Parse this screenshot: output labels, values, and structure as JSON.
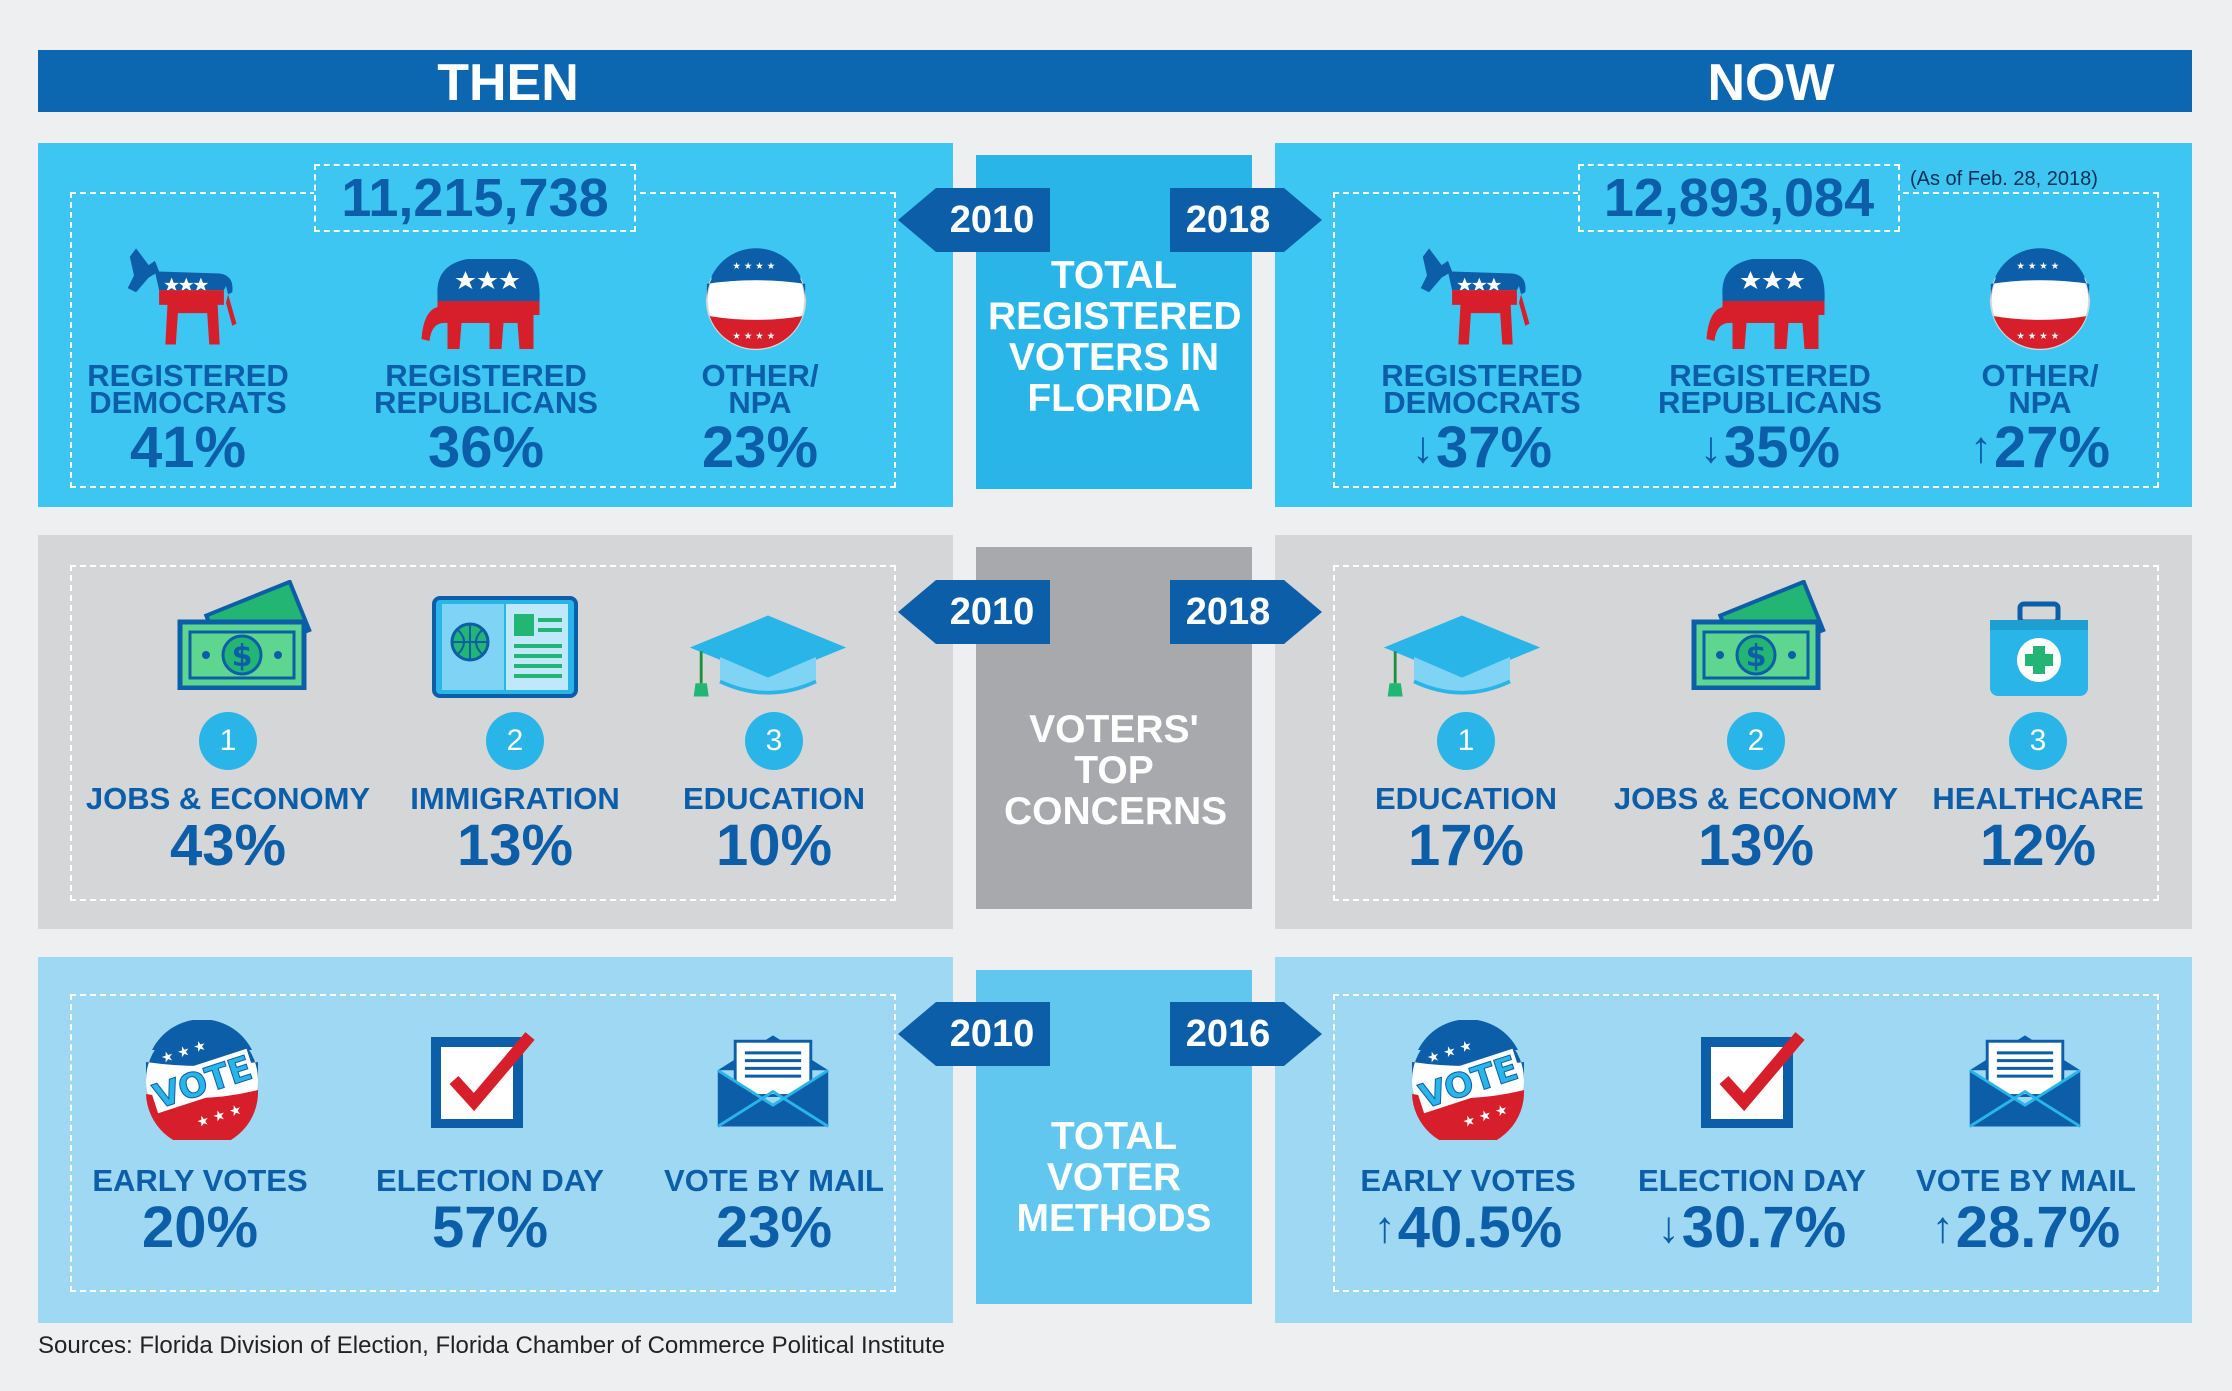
{
  "header": {
    "then_label": "THEN",
    "now_label": "NOW"
  },
  "row1": {
    "center_title": "TOTAL REGISTERED VOTERS IN FLORIDA",
    "left_year": "2010",
    "right_year": "2018",
    "left_total": "11,215,738",
    "right_total": "12,893,084",
    "right_note": "(As of Feb. 28, 2018)",
    "left_items": [
      {
        "line1": "REGISTERED",
        "line2": "DEMOCRATS",
        "pct": "41%",
        "icon": "donkey-icon"
      },
      {
        "line1": "REGISTERED",
        "line2": "REPUBLICANS",
        "pct": "36%",
        "icon": "elephant-icon"
      },
      {
        "line1": "OTHER/",
        "line2": "NPA",
        "pct": "23%",
        "icon": "stars-badge-icon"
      }
    ],
    "right_items": [
      {
        "line1": "REGISTERED",
        "line2": "DEMOCRATS",
        "pct": "37%",
        "trend": "down",
        "icon": "donkey-icon"
      },
      {
        "line1": "REGISTERED",
        "line2": "REPUBLICANS",
        "pct": "35%",
        "trend": "down",
        "icon": "elephant-icon"
      },
      {
        "line1": "OTHER/",
        "line2": "NPA",
        "pct": "27%",
        "trend": "up",
        "icon": "stars-badge-icon"
      }
    ]
  },
  "row2": {
    "center_title": "VOTERS' TOP CONCERNS",
    "left_year": "2010",
    "right_year": "2018",
    "left_items": [
      {
        "rank": "1",
        "label": "JOBS & ECONOMY",
        "pct": "43%",
        "icon": "money-icon"
      },
      {
        "rank": "2",
        "label": "IMMIGRATION",
        "pct": "13%",
        "icon": "passport-icon"
      },
      {
        "rank": "3",
        "label": "EDUCATION",
        "pct": "10%",
        "icon": "graduation-cap-icon"
      }
    ],
    "right_items": [
      {
        "rank": "1",
        "label": "EDUCATION",
        "pct": "17%",
        "icon": "graduation-cap-icon"
      },
      {
        "rank": "2",
        "label": "JOBS & ECONOMY",
        "pct": "13%",
        "icon": "money-icon"
      },
      {
        "rank": "3",
        "label": "HEALTHCARE",
        "pct": "12%",
        "icon": "medical-kit-icon"
      }
    ]
  },
  "row3": {
    "center_title": "TOTAL VOTER METHODS",
    "left_year": "2010",
    "right_year": "2016",
    "left_items": [
      {
        "label": "EARLY VOTES",
        "pct": "20%",
        "icon": "vote-badge-icon"
      },
      {
        "label": "ELECTION DAY",
        "pct": "57%",
        "icon": "checkbox-icon"
      },
      {
        "label": "VOTE BY MAIL",
        "pct": "23%",
        "icon": "envelope-icon"
      }
    ],
    "right_items": [
      {
        "label": "EARLY VOTES",
        "pct": "40.5%",
        "trend": "up",
        "icon": "vote-badge-icon"
      },
      {
        "label": "ELECTION DAY",
        "pct": "30.7%",
        "trend": "down",
        "icon": "checkbox-icon"
      },
      {
        "label": "VOTE BY MAIL",
        "pct": "28.7%",
        "trend": "up",
        "icon": "envelope-icon"
      }
    ]
  },
  "vote_badge_text": "VOTE",
  "money_symbol": "$",
  "sources": "Sources: Florida Division of Election, Florida Chamber of Commerce Political Institute",
  "colors": {
    "dark_blue": "#0d5ea8",
    "bright_blue": "#3ec6f2",
    "light_blue": "#9fd8f2",
    "gray": "#d5d6d8",
    "red": "#d61f2b"
  }
}
